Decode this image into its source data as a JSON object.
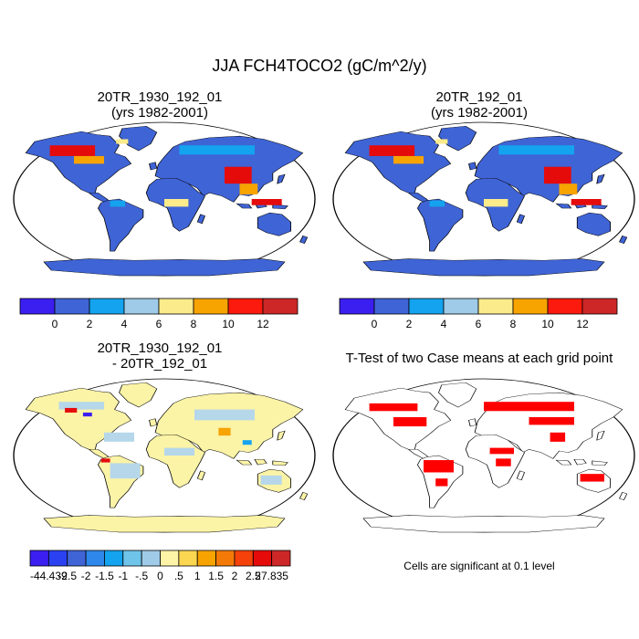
{
  "main_title": "JJA FCH4TOCO2 (gC/m^2/y)",
  "panels": {
    "top_left": {
      "title_line1": "20TR_1930_192_01",
      "title_line2": "(yrs 1982-2001)"
    },
    "top_right": {
      "title_line1": "20TR_192_01",
      "title_line2": "(yrs 1982-2001)"
    },
    "bottom_left": {
      "title_line1": "20TR_1930_192_01",
      "title_line2": "- 20TR_192_01"
    },
    "bottom_right": {
      "title": "T-Test of two Case means at each grid point"
    }
  },
  "colorbar_main": {
    "colors": [
      "#3b1ff0",
      "#3f64d6",
      "#13a3ef",
      "#9fcbe8",
      "#fbeb8b",
      "#f7a300",
      "#fb1a0d",
      "#cd2727"
    ],
    "labels": [
      "0",
      "2",
      "4",
      "6",
      "8",
      "10",
      "12"
    ]
  },
  "colorbar_diff": {
    "colors": [
      "#3b1ff0",
      "#2a41f2",
      "#3f64d6",
      "#2e87ea",
      "#13a3ef",
      "#6fc4ea",
      "#9fcbe8",
      "#fdf4a8",
      "#fbd651",
      "#f7a300",
      "#f47a08",
      "#f5410a",
      "#e50b0b",
      "#cd2727"
    ],
    "labels": [
      "-44.439",
      "-2.5",
      "-2",
      "-1.5",
      "-1",
      "-.5",
      "0",
      ".5",
      "1",
      "1.5",
      "2",
      "2.5",
      "27.835"
    ]
  },
  "significance": {
    "color": "#ff0000",
    "note": "Cells are significant at 0.1 level"
  },
  "map_colors": {
    "ocean": "#ffffff",
    "land_mean_fill": "#3f64d6",
    "land_diff_fill": "#fbf3a6",
    "land_diff_secondary": "#b6d7ea",
    "land_ttest_fill": "#ffffff",
    "hotspot_red": "#e50b0b",
    "hotspot_orange": "#f7a300",
    "hotspot_yellow": "#fbeb8b",
    "hotspot_cyan": "#13a3ef"
  }
}
